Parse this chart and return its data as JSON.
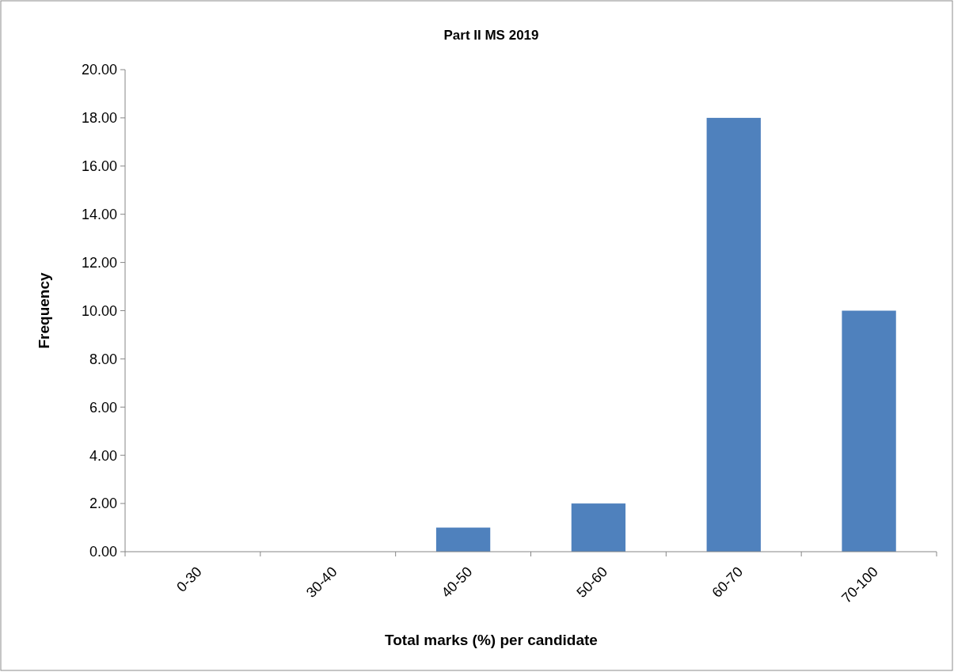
{
  "chart_data": {
    "type": "bar",
    "title": "Part II MS 2019",
    "xlabel": "Total marks (%) per candidate",
    "ylabel": "Frequency",
    "categories": [
      "0-30",
      "30-40",
      "40-50",
      "50-60",
      "60-70",
      "70-100"
    ],
    "values": [
      0,
      0,
      1,
      2,
      18,
      10
    ],
    "color": "#4f81bd",
    "ylim": [
      0,
      20
    ],
    "yticks": [
      {
        "value": 0,
        "label": "0.00"
      },
      {
        "value": 2,
        "label": "2.00"
      },
      {
        "value": 4,
        "label": "4.00"
      },
      {
        "value": 6,
        "label": "6.00"
      },
      {
        "value": 8,
        "label": "8.00"
      },
      {
        "value": 10,
        "label": "10.00"
      },
      {
        "value": 12,
        "label": "12.00"
      },
      {
        "value": 14,
        "label": "14.00"
      },
      {
        "value": 16,
        "label": "16.00"
      },
      {
        "value": 18,
        "label": "18.00"
      },
      {
        "value": 20,
        "label": "20.00"
      }
    ],
    "grid": false
  }
}
